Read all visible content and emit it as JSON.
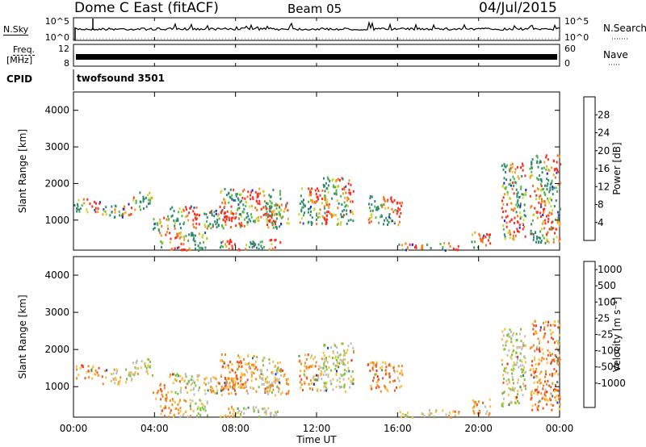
{
  "header": {
    "radar": "Dome C East (fitACF)",
    "beam": "Beam 05",
    "date": "04/Jul/2015"
  },
  "side_labels": {
    "nsky": "N.Sky",
    "nsearch": "N.Search",
    "freq_line1": "Freq.",
    "freq_line2": "[MHz]",
    "nave": "Nave",
    "cpid": "CPID",
    "cpid_value": "twofsound 3501"
  },
  "colors": {
    "trace": "#000000",
    "axis": "#000000"
  },
  "chart_data": [
    {
      "type": "line",
      "name": "noise-panel",
      "ylabel": "N.Sky",
      "yticks_left": [
        "10^5",
        "10^0"
      ],
      "yticks_right": [
        "10^5",
        "10^0"
      ],
      "right_label": "N.Search",
      "x_range_hours": [
        0,
        24
      ]
    },
    {
      "type": "line",
      "name": "frequency-panel",
      "ylabel": "Freq. [MHz]",
      "yticks_left": [
        "12",
        "8"
      ],
      "yticks_right": [
        "60",
        "0"
      ],
      "right_label": "Nave",
      "freq_mhz_approx": 11
    },
    {
      "type": "heatmap",
      "name": "power-panel",
      "ylabel": "Slant Range [km]",
      "ylim": [
        180,
        4500
      ],
      "yticks": [
        1000,
        2000,
        3000,
        4000
      ],
      "colorbar": {
        "label": "Power [dB]",
        "ticks": [
          "4",
          "8",
          "12",
          "16",
          "20",
          "24",
          "28"
        ],
        "colors": [
          "#1a1aff",
          "#2a4fb0",
          "#2f8a6a",
          "#52b848",
          "#c9d62d",
          "#f0a020",
          "#f07020",
          "#ff2a1a"
        ]
      },
      "scatter_regions": [
        {
          "t0": 0.0,
          "t1": 1.4,
          "r0": 1250,
          "r1": 1600
        },
        {
          "t0": 1.4,
          "t1": 2.9,
          "r0": 1100,
          "r1": 1500
        },
        {
          "t0": 2.9,
          "t1": 3.9,
          "r0": 1300,
          "r1": 1800
        },
        {
          "t0": 3.9,
          "t1": 4.7,
          "r0": 700,
          "r1": 1100
        },
        {
          "t0": 4.2,
          "t1": 6.6,
          "r0": 200,
          "r1": 700
        },
        {
          "t0": 4.6,
          "t1": 6.2,
          "r0": 800,
          "r1": 1400
        },
        {
          "t0": 6.4,
          "t1": 8.6,
          "r0": 800,
          "r1": 1300
        },
        {
          "t0": 7.2,
          "t1": 10.2,
          "r0": 900,
          "r1": 1900
        },
        {
          "t0": 7.2,
          "t1": 10.2,
          "r0": 200,
          "r1": 500
        },
        {
          "t0": 9.4,
          "t1": 10.6,
          "r0": 800,
          "r1": 1500
        },
        {
          "t0": 11.1,
          "t1": 12.6,
          "r0": 900,
          "r1": 1900
        },
        {
          "t0": 12.3,
          "t1": 13.8,
          "r0": 900,
          "r1": 2200
        },
        {
          "t0": 14.5,
          "t1": 16.2,
          "r0": 900,
          "r1": 1700
        },
        {
          "t0": 16.0,
          "t1": 19.0,
          "r0": 200,
          "r1": 400
        },
        {
          "t0": 19.6,
          "t1": 20.6,
          "r0": 250,
          "r1": 700
        },
        {
          "t0": 21.1,
          "t1": 22.3,
          "r0": 500,
          "r1": 2600
        },
        {
          "t0": 22.5,
          "t1": 24.0,
          "r0": 400,
          "r1": 2800
        }
      ]
    },
    {
      "type": "heatmap",
      "name": "velocity-panel",
      "ylabel": "Slant Range [km]",
      "ylim": [
        180,
        4500
      ],
      "yticks": [
        1000,
        2000,
        3000,
        4000
      ],
      "colorbar": {
        "label": "Velocity [m s⁻¹]",
        "ticks": [
          "1000",
          "500",
          "100",
          "25",
          "-25",
          "-100",
          "-500",
          "-1000"
        ],
        "colors": [
          "#1c3bb0",
          "#2a7a8a",
          "#3f9a58",
          "#7ac23a",
          "#bbbbbb",
          "#f5c040",
          "#f08a20",
          "#f05020",
          "#e82010"
        ]
      },
      "scatter_regions": [
        {
          "t0": 0.0,
          "t1": 1.4,
          "r0": 1250,
          "r1": 1600
        },
        {
          "t0": 1.4,
          "t1": 2.9,
          "r0": 1100,
          "r1": 1500
        },
        {
          "t0": 2.9,
          "t1": 3.9,
          "r0": 1300,
          "r1": 1800
        },
        {
          "t0": 3.9,
          "t1": 4.7,
          "r0": 700,
          "r1": 1100
        },
        {
          "t0": 4.2,
          "t1": 6.6,
          "r0": 200,
          "r1": 700
        },
        {
          "t0": 4.6,
          "t1": 6.2,
          "r0": 800,
          "r1": 1400
        },
        {
          "t0": 6.4,
          "t1": 8.6,
          "r0": 800,
          "r1": 1300
        },
        {
          "t0": 7.2,
          "t1": 10.2,
          "r0": 900,
          "r1": 1900
        },
        {
          "t0": 7.2,
          "t1": 10.2,
          "r0": 200,
          "r1": 500
        },
        {
          "t0": 9.4,
          "t1": 10.6,
          "r0": 800,
          "r1": 1500
        },
        {
          "t0": 11.1,
          "t1": 12.6,
          "r0": 900,
          "r1": 1900
        },
        {
          "t0": 12.3,
          "t1": 13.8,
          "r0": 900,
          "r1": 2200
        },
        {
          "t0": 14.5,
          "t1": 16.2,
          "r0": 900,
          "r1": 1700
        },
        {
          "t0": 16.0,
          "t1": 19.0,
          "r0": 200,
          "r1": 400
        },
        {
          "t0": 19.6,
          "t1": 20.6,
          "r0": 250,
          "r1": 700
        },
        {
          "t0": 21.1,
          "t1": 22.3,
          "r0": 500,
          "r1": 2600
        },
        {
          "t0": 22.5,
          "t1": 24.0,
          "r0": 400,
          "r1": 2800
        }
      ]
    }
  ],
  "x_axis": {
    "label": "Time UT",
    "range_hours": [
      0,
      24
    ],
    "ticks": [
      "00:00",
      "04:00",
      "08:00",
      "12:00",
      "16:00",
      "20:00",
      "00:00"
    ]
  }
}
